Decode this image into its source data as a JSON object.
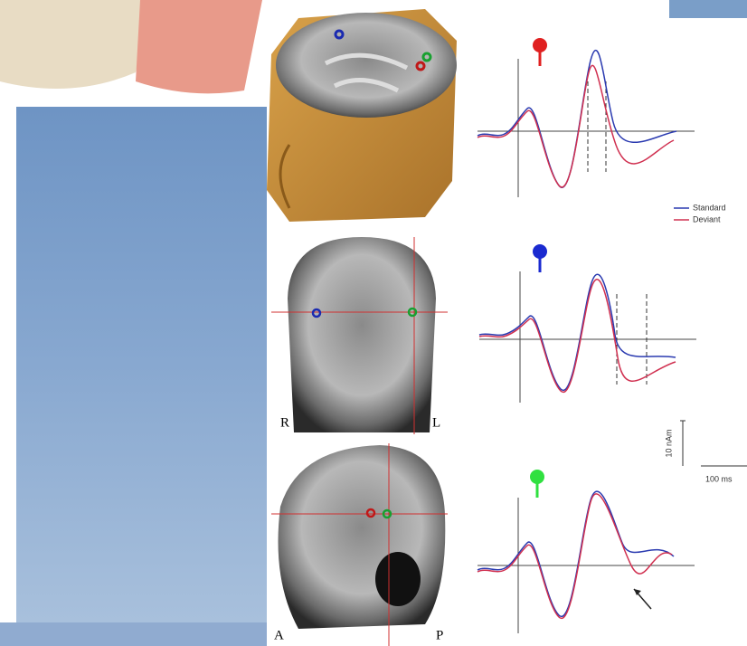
{
  "figure": {
    "legend": [
      "Standard",
      "Deviant"
    ],
    "coronal_labels": {
      "right": "R",
      "left": "L"
    },
    "sagittal_labels": {
      "anterior": "A",
      "posterior": "P"
    },
    "scale_bar": {
      "amplitude": "10 nAm",
      "time": "100 ms"
    }
  }
}
